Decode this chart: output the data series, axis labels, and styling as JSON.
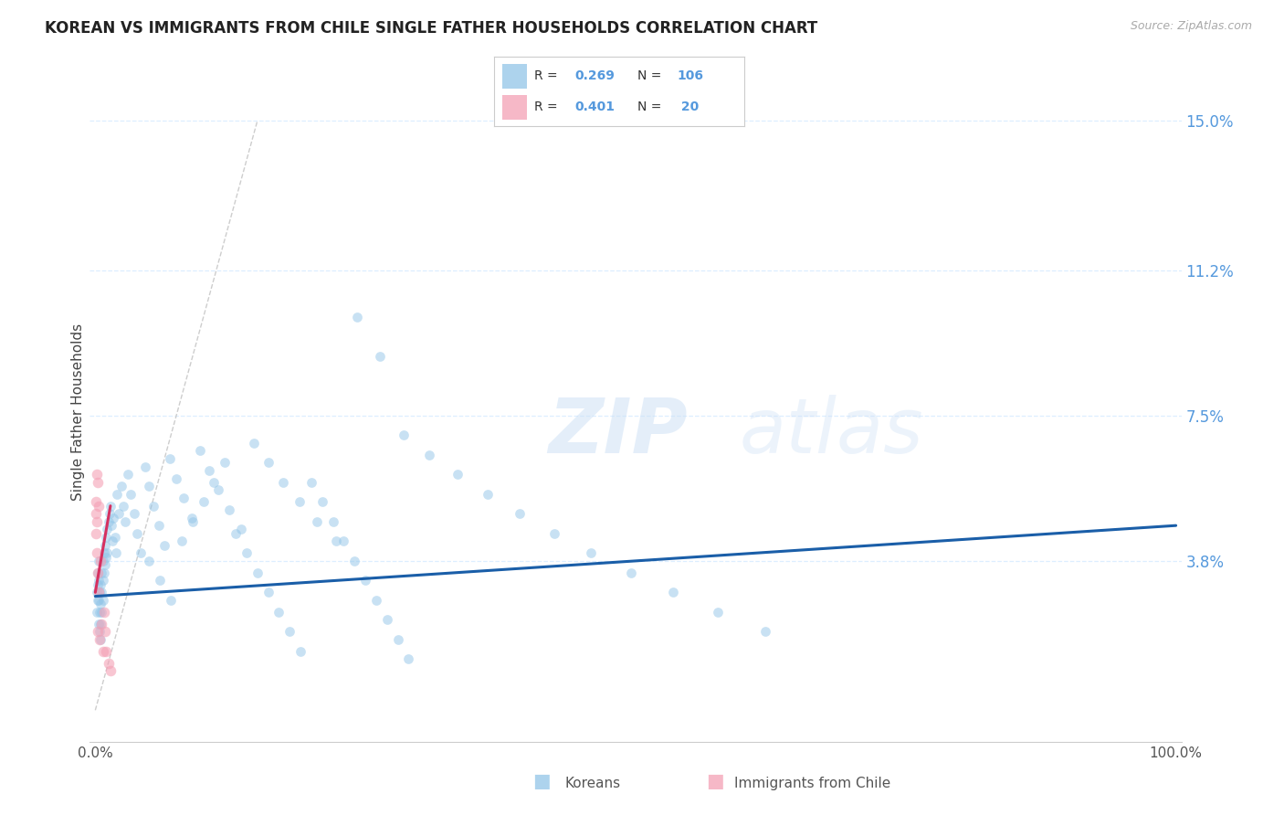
{
  "title": "KOREAN VS IMMIGRANTS FROM CHILE SINGLE FATHER HOUSEHOLDS CORRELATION CHART",
  "source": "Source: ZipAtlas.com",
  "ylabel": "Single Father Households",
  "y_ticks": [
    0.0,
    0.038,
    0.075,
    0.112,
    0.15
  ],
  "y_tick_labels": [
    "",
    "3.8%",
    "7.5%",
    "11.2%",
    "15.0%"
  ],
  "watermark_zip": "ZIP",
  "watermark_atlas": "atlas",
  "legend_R1": "R = 0.269",
  "legend_N1": "N = 106",
  "legend_R2": "R = 0.401",
  "legend_N2": "N =  20",
  "korean_color": "#92C5E8",
  "chile_color": "#F4A0B5",
  "trend_korean_color": "#1A5EA8",
  "trend_chile_color": "#D63060",
  "diag_color": "#C8C8C8",
  "background_color": "#FFFFFF",
  "grid_color": "#DDEEFF",
  "title_color": "#222222",
  "axis_label_color": "#444444",
  "right_tick_color": "#5599DD",
  "source_color": "#AAAAAA",
  "korean_x": [
    0.001,
    0.001,
    0.002,
    0.002,
    0.002,
    0.003,
    0.003,
    0.003,
    0.003,
    0.004,
    0.004,
    0.004,
    0.005,
    0.005,
    0.005,
    0.005,
    0.006,
    0.006,
    0.006,
    0.007,
    0.007,
    0.007,
    0.008,
    0.008,
    0.009,
    0.009,
    0.01,
    0.01,
    0.011,
    0.011,
    0.012,
    0.013,
    0.014,
    0.015,
    0.016,
    0.017,
    0.018,
    0.019,
    0.02,
    0.022,
    0.024,
    0.026,
    0.028,
    0.03,
    0.033,
    0.036,
    0.039,
    0.042,
    0.046,
    0.05,
    0.054,
    0.059,
    0.064,
    0.069,
    0.075,
    0.082,
    0.089,
    0.097,
    0.105,
    0.114,
    0.124,
    0.135,
    0.147,
    0.16,
    0.174,
    0.189,
    0.205,
    0.223,
    0.242,
    0.263,
    0.285,
    0.309,
    0.335,
    0.363,
    0.393,
    0.425,
    0.459,
    0.496,
    0.535,
    0.576,
    0.62,
    0.05,
    0.06,
    0.07,
    0.08,
    0.09,
    0.1,
    0.11,
    0.12,
    0.13,
    0.14,
    0.15,
    0.16,
    0.17,
    0.18,
    0.19,
    0.2,
    0.21,
    0.22,
    0.23,
    0.24,
    0.25,
    0.26,
    0.27,
    0.28,
    0.29
  ],
  "korean_y": [
    0.03,
    0.025,
    0.032,
    0.028,
    0.035,
    0.022,
    0.028,
    0.033,
    0.038,
    0.025,
    0.03,
    0.02,
    0.032,
    0.027,
    0.022,
    0.018,
    0.035,
    0.03,
    0.025,
    0.038,
    0.033,
    0.028,
    0.04,
    0.035,
    0.042,
    0.037,
    0.044,
    0.039,
    0.046,
    0.04,
    0.048,
    0.05,
    0.052,
    0.047,
    0.043,
    0.049,
    0.044,
    0.04,
    0.055,
    0.05,
    0.057,
    0.052,
    0.048,
    0.06,
    0.055,
    0.05,
    0.045,
    0.04,
    0.062,
    0.057,
    0.052,
    0.047,
    0.042,
    0.064,
    0.059,
    0.054,
    0.049,
    0.066,
    0.061,
    0.056,
    0.051,
    0.046,
    0.068,
    0.063,
    0.058,
    0.053,
    0.048,
    0.043,
    0.1,
    0.09,
    0.07,
    0.065,
    0.06,
    0.055,
    0.05,
    0.045,
    0.04,
    0.035,
    0.03,
    0.025,
    0.02,
    0.038,
    0.033,
    0.028,
    0.043,
    0.048,
    0.053,
    0.058,
    0.063,
    0.045,
    0.04,
    0.035,
    0.03,
    0.025,
    0.02,
    0.015,
    0.058,
    0.053,
    0.048,
    0.043,
    0.038,
    0.033,
    0.028,
    0.023,
    0.018,
    0.013
  ],
  "chile_x": [
    0.0003,
    0.0005,
    0.0008,
    0.001,
    0.001,
    0.001,
    0.002,
    0.002,
    0.002,
    0.003,
    0.003,
    0.004,
    0.005,
    0.006,
    0.007,
    0.008,
    0.009,
    0.01,
    0.012,
    0.014
  ],
  "chile_y": [
    0.053,
    0.05,
    0.045,
    0.06,
    0.048,
    0.04,
    0.058,
    0.035,
    0.02,
    0.052,
    0.03,
    0.018,
    0.038,
    0.022,
    0.015,
    0.025,
    0.02,
    0.015,
    0.012,
    0.01
  ],
  "korean_trend_x": [
    0.0,
    1.0
  ],
  "korean_trend_y": [
    0.029,
    0.047
  ],
  "chile_trend_x": [
    0.0,
    0.014
  ],
  "chile_trend_y": [
    0.03,
    0.052
  ],
  "xlim": [
    -0.005,
    1.005
  ],
  "ylim": [
    -0.008,
    0.16
  ],
  "marker_size_korean": 60,
  "marker_size_chile": 70,
  "marker_alpha_korean": 0.5,
  "marker_alpha_chile": 0.6
}
